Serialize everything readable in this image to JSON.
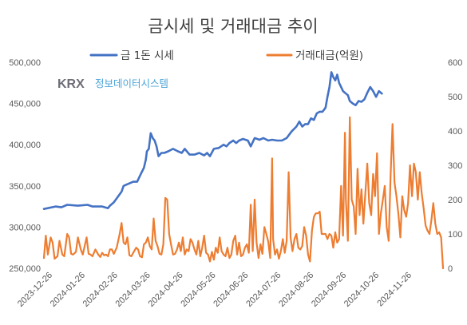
{
  "chart_data": {
    "type": "line",
    "title": "금시세 및 거래대금 추이",
    "watermark": {
      "brand": "KRX",
      "name": "정보데이터시스템"
    },
    "x_ticks": [
      "2023-12-26",
      "2024-01-26",
      "2024-02-26",
      "2024-03-26",
      "2024-04-26",
      "2024-05-26",
      "2024-06-26",
      "2024-07-26",
      "2024-08-26",
      "2024-09-26",
      "2024-10-26",
      "2024-11-26"
    ],
    "y_left": {
      "min": 250000,
      "max": 500000,
      "step": 50000,
      "ticks": [
        "250,000",
        "300,000",
        "350,000",
        "400,000",
        "450,000",
        "500,000"
      ]
    },
    "y_right": {
      "min": 0,
      "max": 600,
      "step": 100,
      "ticks": [
        "0",
        "100",
        "200",
        "300",
        "400",
        "500",
        "600"
      ]
    },
    "series": [
      {
        "name": "금 1돈 시세",
        "axis": "left",
        "color": "#4472c4",
        "values": [
          [
            0,
            322000
          ],
          [
            12,
            325000
          ],
          [
            18,
            324000
          ],
          [
            24,
            327000
          ],
          [
            35,
            326000
          ],
          [
            45,
            327000
          ],
          [
            50,
            325000
          ],
          [
            60,
            325000
          ],
          [
            66,
            323000
          ],
          [
            68,
            326000
          ],
          [
            72,
            330000
          ],
          [
            80,
            343000
          ],
          [
            82,
            350000
          ],
          [
            86,
            352000
          ],
          [
            92,
            355000
          ],
          [
            96,
            355000
          ],
          [
            100,
            365000
          ],
          [
            103,
            372000
          ],
          [
            105,
            382000
          ],
          [
            106,
            392000
          ],
          [
            108,
            395000
          ],
          [
            110,
            414000
          ],
          [
            112,
            408000
          ],
          [
            114,
            405000
          ],
          [
            116,
            398000
          ],
          [
            118,
            386000
          ],
          [
            121,
            390000
          ],
          [
            124,
            390000
          ],
          [
            128,
            392000
          ],
          [
            133,
            395000
          ],
          [
            138,
            392000
          ],
          [
            142,
            390000
          ],
          [
            145,
            395000
          ],
          [
            150,
            388000
          ],
          [
            155,
            388000
          ],
          [
            160,
            390000
          ],
          [
            165,
            387000
          ],
          [
            168,
            390000
          ],
          [
            171,
            386000
          ],
          [
            175,
            395000
          ],
          [
            180,
            396000
          ],
          [
            185,
            400000
          ],
          [
            188,
            398000
          ],
          [
            191,
            402000
          ],
          [
            195,
            405000
          ],
          [
            198,
            402000
          ],
          [
            201,
            405000
          ],
          [
            205,
            407000
          ],
          [
            210,
            405000
          ],
          [
            213,
            398000
          ],
          [
            217,
            408000
          ],
          [
            222,
            406000
          ],
          [
            226,
            408000
          ],
          [
            231,
            405000
          ],
          [
            235,
            406000
          ],
          [
            240,
            405000
          ],
          [
            245,
            405000
          ],
          [
            250,
            408000
          ],
          [
            255,
            416000
          ],
          [
            260,
            422000
          ],
          [
            263,
            428000
          ],
          [
            266,
            422000
          ],
          [
            269,
            425000
          ],
          [
            272,
            425000
          ],
          [
            275,
            432000
          ],
          [
            278,
            430000
          ],
          [
            281,
            438000
          ],
          [
            284,
            440000
          ],
          [
            287,
            440000
          ],
          [
            290,
            445000
          ],
          [
            292,
            458000
          ],
          [
            294,
            470000
          ],
          [
            296,
            488000
          ],
          [
            298,
            482000
          ],
          [
            300,
            478000
          ],
          [
            302,
            485000
          ],
          [
            304,
            475000
          ],
          [
            306,
            470000
          ],
          [
            308,
            465000
          ],
          [
            311,
            462000
          ],
          [
            313,
            460000
          ],
          [
            315,
            453000
          ],
          [
            318,
            450000
          ],
          [
            321,
            448000
          ],
          [
            324,
            453000
          ],
          [
            327,
            452000
          ],
          [
            330,
            455000
          ],
          [
            333,
            463000
          ],
          [
            336,
            470000
          ],
          [
            339,
            465000
          ],
          [
            342,
            458000
          ],
          [
            345,
            465000
          ],
          [
            348,
            462000
          ]
        ]
      },
      {
        "name": "거래대금(억원)",
        "axis": "right",
        "color": "#ed7d31",
        "values": [
          [
            0,
            30
          ],
          [
            2,
            95
          ],
          [
            4,
            40
          ],
          [
            7,
            90
          ],
          [
            9,
            75
          ],
          [
            11,
            28
          ],
          [
            14,
            35
          ],
          [
            16,
            80
          ],
          [
            19,
            40
          ],
          [
            21,
            35
          ],
          [
            24,
            100
          ],
          [
            26,
            90
          ],
          [
            28,
            42
          ],
          [
            30,
            40
          ],
          [
            33,
            48
          ],
          [
            35,
            90
          ],
          [
            38,
            55
          ],
          [
            40,
            40
          ],
          [
            44,
            90
          ],
          [
            46,
            42
          ],
          [
            48,
            40
          ],
          [
            50,
            35
          ],
          [
            53,
            55
          ],
          [
            56,
            40
          ],
          [
            58,
            33
          ],
          [
            60,
            45
          ],
          [
            62,
            38
          ],
          [
            64,
            40
          ],
          [
            66,
            35
          ],
          [
            68,
            55
          ],
          [
            70,
            55
          ],
          [
            72,
            42
          ],
          [
            75,
            60
          ],
          [
            78,
            100
          ],
          [
            80,
            132
          ],
          [
            82,
            75
          ],
          [
            84,
            70
          ],
          [
            86,
            90
          ],
          [
            88,
            38
          ],
          [
            90,
            35
          ],
          [
            93,
            50
          ],
          [
            95,
            60
          ],
          [
            97,
            55
          ],
          [
            99,
            35
          ],
          [
            101,
            32
          ],
          [
            103,
            70
          ],
          [
            105,
            75
          ],
          [
            107,
            90
          ],
          [
            109,
            65
          ],
          [
            111,
            55
          ],
          [
            113,
            145
          ],
          [
            115,
            80
          ],
          [
            117,
            65
          ],
          [
            119,
            42
          ],
          [
            121,
            40
          ],
          [
            123,
            70
          ],
          [
            125,
            205
          ],
          [
            127,
            200
          ],
          [
            129,
            100
          ],
          [
            131,
            68
          ],
          [
            133,
            40
          ],
          [
            135,
            42
          ],
          [
            137,
            55
          ],
          [
            139,
            75
          ],
          [
            141,
            50
          ],
          [
            143,
            90
          ],
          [
            145,
            40
          ],
          [
            147,
            55
          ],
          [
            149,
            50
          ],
          [
            151,
            85
          ],
          [
            153,
            75
          ],
          [
            155,
            55
          ],
          [
            157,
            40
          ],
          [
            159,
            80
          ],
          [
            161,
            35
          ],
          [
            163,
            60
          ],
          [
            165,
            95
          ],
          [
            167,
            45
          ],
          [
            169,
            40
          ],
          [
            171,
            20
          ],
          [
            173,
            48
          ],
          [
            175,
            25
          ],
          [
            177,
            60
          ],
          [
            179,
            45
          ],
          [
            181,
            90
          ],
          [
            183,
            50
          ],
          [
            185,
            40
          ],
          [
            187,
            35
          ],
          [
            189,
            60
          ],
          [
            191,
            30
          ],
          [
            193,
            40
          ],
          [
            195,
            80
          ],
          [
            197,
            95
          ],
          [
            199,
            40
          ],
          [
            201,
            75
          ],
          [
            203,
            35
          ],
          [
            205,
            40
          ],
          [
            207,
            60
          ],
          [
            209,
            70
          ],
          [
            211,
            45
          ],
          [
            213,
            185
          ],
          [
            215,
            50
          ],
          [
            217,
            200
          ],
          [
            219,
            75
          ],
          [
            221,
            30
          ],
          [
            223,
            70
          ],
          [
            225,
            42
          ],
          [
            227,
            120
          ],
          [
            229,
            100
          ],
          [
            231,
            78
          ],
          [
            233,
            30
          ],
          [
            235,
            320
          ],
          [
            236,
            85
          ],
          [
            238,
            40
          ],
          [
            240,
            55
          ],
          [
            242,
            28
          ],
          [
            244,
            50
          ],
          [
            246,
            85
          ],
          [
            248,
            45
          ],
          [
            250,
            80
          ],
          [
            252,
            280
          ],
          [
            254,
            90
          ],
          [
            256,
            50
          ],
          [
            258,
            85
          ],
          [
            260,
            100
          ],
          [
            262,
            60
          ],
          [
            264,
            55
          ],
          [
            266,
            65
          ],
          [
            268,
            120
          ],
          [
            270,
            95
          ],
          [
            272,
            40
          ],
          [
            274,
            20
          ],
          [
            276,
            110
          ],
          [
            278,
            150
          ],
          [
            280,
            160
          ],
          [
            282,
            160
          ],
          [
            284,
            165
          ],
          [
            286,
            100
          ],
          [
            288,
            100
          ],
          [
            290,
            100
          ],
          [
            292,
            85
          ],
          [
            294,
            100
          ],
          [
            296,
            95
          ],
          [
            298,
            60
          ],
          [
            300,
            105
          ],
          [
            302,
            75
          ],
          [
            304,
            85
          ],
          [
            306,
            240
          ],
          [
            308,
            95
          ],
          [
            310,
            395
          ],
          [
            311,
            200
          ],
          [
            313,
            80
          ],
          [
            315,
            440
          ],
          [
            317,
            200
          ],
          [
            319,
            180
          ],
          [
            321,
            100
          ],
          [
            323,
            290
          ],
          [
            325,
            155
          ],
          [
            327,
            230
          ],
          [
            329,
            130
          ],
          [
            331,
            220
          ],
          [
            333,
            305
          ],
          [
            335,
            190
          ],
          [
            337,
            155
          ],
          [
            339,
            275
          ],
          [
            341,
            210
          ],
          [
            343,
            335
          ],
          [
            345,
            100
          ],
          [
            347,
            160
          ],
          [
            349,
            200
          ],
          [
            351,
            240
          ],
          [
            353,
            120
          ],
          [
            355,
            80
          ],
          [
            357,
            270
          ],
          [
            359,
            420
          ],
          [
            361,
            250
          ],
          [
            363,
            210
          ],
          [
            365,
            160
          ],
          [
            367,
            90
          ],
          [
            369,
            210
          ],
          [
            371,
            170
          ],
          [
            373,
            150
          ],
          [
            375,
            190
          ],
          [
            377,
            300
          ],
          [
            379,
            210
          ],
          [
            381,
            305
          ],
          [
            383,
            280
          ],
          [
            385,
            200
          ],
          [
            387,
            280
          ],
          [
            389,
            220
          ],
          [
            391,
            175
          ],
          [
            393,
            125
          ],
          [
            395,
            110
          ],
          [
            397,
            100
          ],
          [
            399,
            140
          ],
          [
            401,
            190
          ],
          [
            403,
            130
          ],
          [
            405,
            100
          ],
          [
            407,
            105
          ],
          [
            409,
            90
          ],
          [
            411,
            0
          ]
        ]
      }
    ]
  }
}
